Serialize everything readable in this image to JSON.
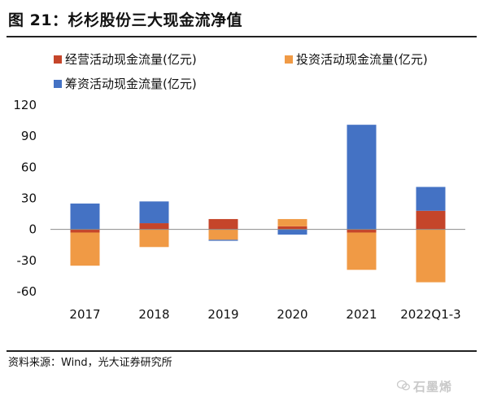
{
  "header": {
    "title": "图 21：杉杉股份三大现金流净值"
  },
  "footer": {
    "source": "资料来源：Wind，光大证券研究所",
    "watermark": "石墨烯"
  },
  "colors": {
    "operating": "#c5452a",
    "investing": "#f09a45",
    "financing": "#4472c4"
  },
  "chart_data": {
    "type": "bar",
    "stacked": true,
    "categories": [
      "2017",
      "2018",
      "2019",
      "2020",
      "2021",
      "2022Q1-3"
    ],
    "series": [
      {
        "name": "经营活动现金流量(亿元)",
        "color": "#c5452a",
        "values": [
          -3,
          6,
          10,
          3,
          -3,
          18
        ]
      },
      {
        "name": "投资活动现金流量(亿元)",
        "color": "#f09a45",
        "values": [
          -32,
          -17,
          -10,
          7,
          -36,
          -51
        ]
      },
      {
        "name": "筹资活动现金流量(亿元)",
        "color": "#4472c4",
        "values": [
          25,
          21,
          -1,
          -5,
          101,
          23
        ]
      }
    ],
    "ylim": [
      -60,
      120
    ],
    "yticks": [
      -60,
      -30,
      0,
      30,
      60,
      90,
      120
    ],
    "ytick_labels": [
      "-60",
      "-30",
      "0",
      "30",
      "60",
      "90",
      "120"
    ],
    "legend_position": "top",
    "grid": false
  }
}
